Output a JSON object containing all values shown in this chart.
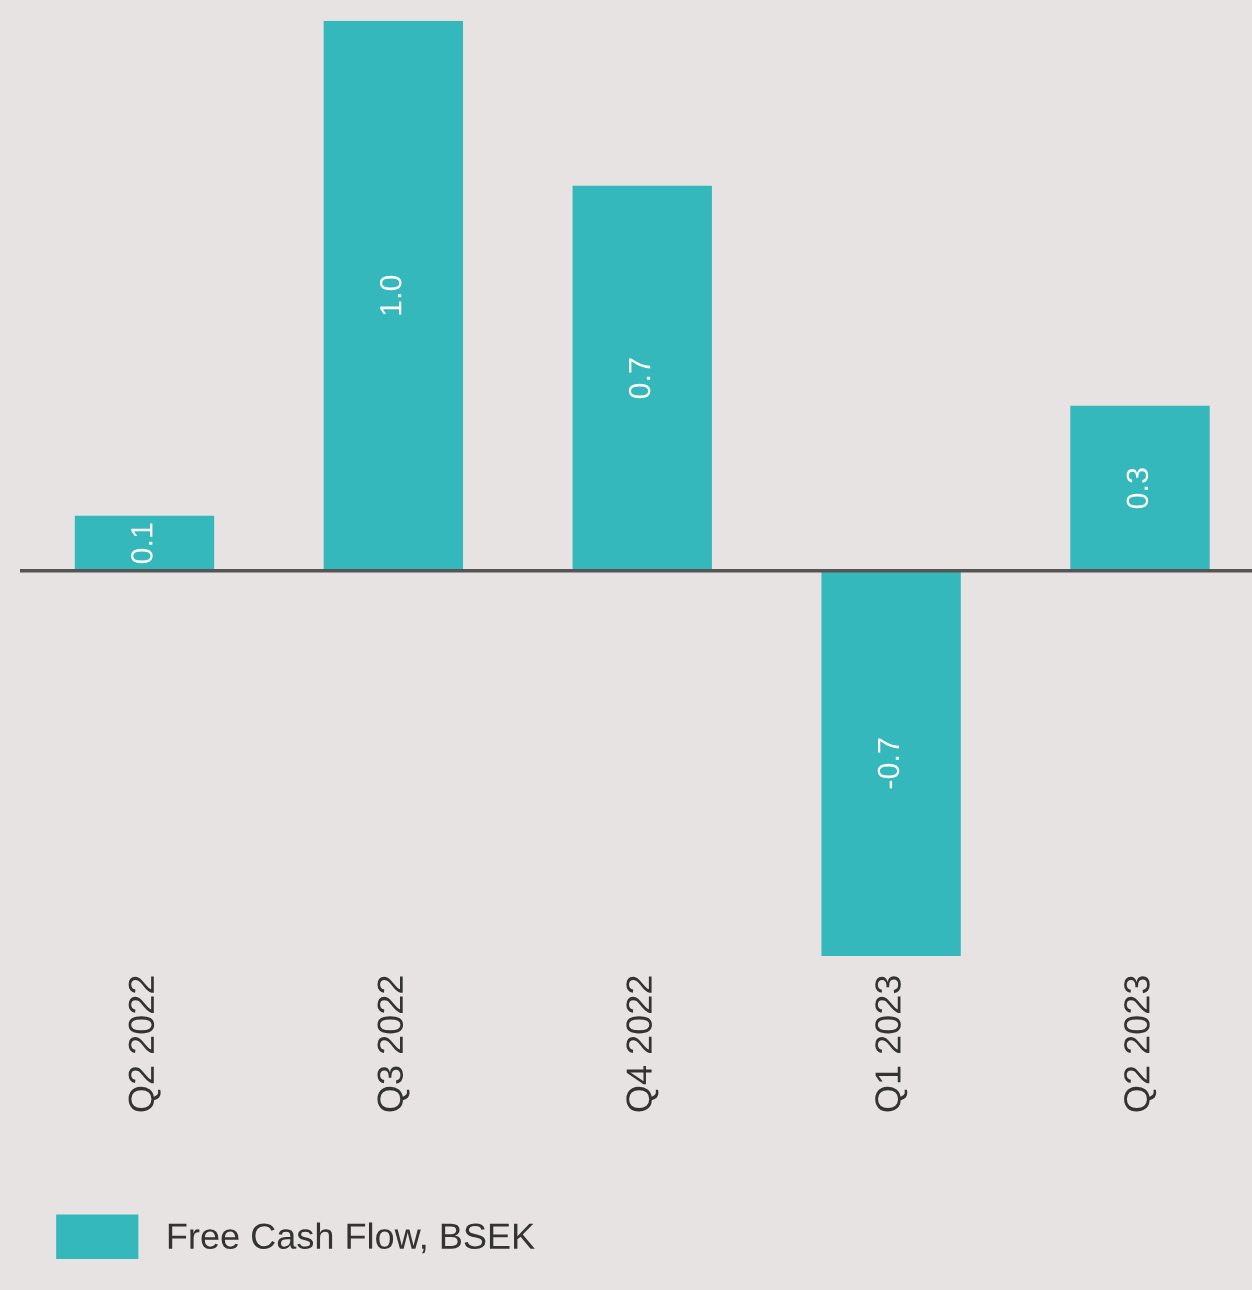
{
  "chart_data": {
    "type": "bar",
    "categories": [
      "Q2 2022",
      "Q3 2022",
      "Q4 2022",
      "Q1 2023",
      "Q2 2023"
    ],
    "series": [
      {
        "name": "Free Cash Flow, BSEK",
        "color": "#34b8bc",
        "values": [
          0.1,
          1.0,
          0.7,
          -0.7,
          0.3
        ],
        "value_labels": [
          "0.1",
          "1.0",
          "0.7",
          "-0.7",
          "0.3"
        ]
      }
    ],
    "legend": "bottom left"
  }
}
